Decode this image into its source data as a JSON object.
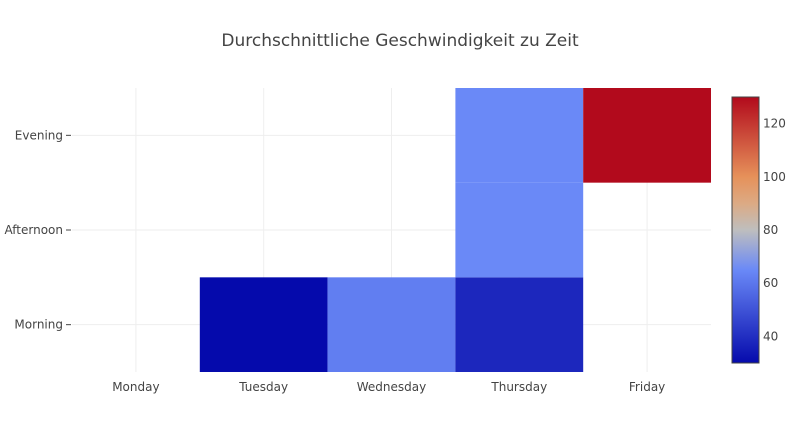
{
  "chart_data": {
    "type": "heatmap",
    "title": "Durchschnittliche Geschwindigkeit zu Zeit",
    "xlabel": "",
    "ylabel": "",
    "x_categories": [
      "Monday",
      "Tuesday",
      "Wednesday",
      "Thursday",
      "Friday"
    ],
    "y_categories": [
      "Morning",
      "Afternoon",
      "Evening"
    ],
    "cells": [
      {
        "x": "Tuesday",
        "y": "Morning",
        "value": 30
      },
      {
        "x": "Wednesday",
        "y": "Morning",
        "value": 62
      },
      {
        "x": "Thursday",
        "y": "Morning",
        "value": 38
      },
      {
        "x": "Thursday",
        "y": "Afternoon",
        "value": 65
      },
      {
        "x": "Thursday",
        "y": "Evening",
        "value": 65
      },
      {
        "x": "Friday",
        "y": "Evening",
        "value": 130
      }
    ],
    "zmin": 30,
    "zmax": 130,
    "colorscale": "Coolwarm",
    "colorbar_ticks": [
      40,
      60,
      80,
      100,
      120
    ],
    "grid": true,
    "legend": "colorbar-right"
  }
}
